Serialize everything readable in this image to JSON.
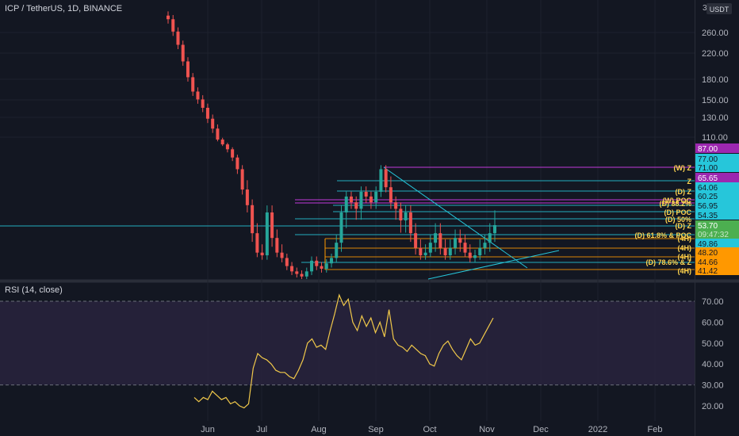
{
  "header": {
    "symbol": "ICP / TetherUS, 1D, BINANCE"
  },
  "price_axis": {
    "currency": "USDT",
    "top_value": "3",
    "ticks": [
      "260.00",
      "220.00",
      "180.00",
      "150.00",
      "130.00",
      "110.00"
    ]
  },
  "price_badges": [
    {
      "text": "87.00",
      "bg": "#9c27b0",
      "fg": "#ffffff"
    },
    {
      "text": "77.00",
      "bg": "#26c6da",
      "fg": "#131722"
    },
    {
      "text": "71.00",
      "bg": "#26c6da",
      "fg": "#131722"
    },
    {
      "text": "65.65",
      "bg": "#9c27b0",
      "fg": "#ffffff"
    },
    {
      "text": "64.06",
      "bg": "#26c6da",
      "fg": "#131722"
    },
    {
      "text": "60.25",
      "bg": "#26c6da",
      "fg": "#131722"
    },
    {
      "text": "56.95",
      "bg": "#26c6da",
      "fg": "#131722"
    },
    {
      "text": "54.35",
      "bg": "#26c6da",
      "fg": "#131722"
    },
    {
      "text": "53.70",
      "bg": "#4caf50",
      "fg": "#ffffff"
    },
    {
      "text": "09:47:32",
      "bg": "#4caf50",
      "fg": "#c8e6c9"
    },
    {
      "text": "49.86",
      "bg": "#26c6da",
      "fg": "#131722"
    },
    {
      "text": "48.20",
      "bg": "#ff9800",
      "fg": "#131722"
    },
    {
      "text": "44.66",
      "bg": "#ff9800",
      "fg": "#131722"
    },
    {
      "text": "41.42",
      "bg": "#ff9800",
      "fg": "#131722"
    }
  ],
  "level_labels": [
    "(W) Z",
    "Z",
    "(D) Z",
    "(W) POC",
    "(D) 38.2%",
    "(D) POC",
    "(D) 50%",
    "(D) Z",
    "(4H)",
    "(D) 61.8% & POC",
    "(4H)",
    "(4H)",
    "(D) 78.6% & Z",
    "(4H)"
  ],
  "rsi": {
    "title": "RSI (14, close)",
    "ticks": [
      "70.00",
      "60.00",
      "50.00",
      "40.00",
      "30.00",
      "20.00"
    ],
    "color": "#f0c84a"
  },
  "time_axis": [
    "Jun",
    "Jul",
    "Aug",
    "Sep",
    "Oct",
    "Nov",
    "Dec",
    "2022",
    "Feb"
  ],
  "colors": {
    "up": "#26a69a",
    "down": "#ef5350",
    "band": "#2a2440"
  },
  "chart_data": [
    {
      "type": "candlestick",
      "title": "ICP / TetherUS, 1D, BINANCE",
      "x": [
        "Jun",
        "Jul",
        "Aug",
        "Sep",
        "Oct",
        "Nov",
        "Dec",
        "2022",
        "Feb"
      ],
      "ylabel": "USDT",
      "ylim": [
        38,
        300
      ],
      "yscale": "log",
      "series": [
        {
          "close_path": [
            290,
            262,
            235,
            205,
            180,
            160,
            150,
            140,
            128,
            118,
            105,
            95,
            86,
            78,
            70,
            63,
            57,
            52,
            48,
            47,
            55,
            51,
            48,
            46,
            43,
            41,
            40,
            39,
            41,
            45,
            43,
            42,
            44,
            46,
            50,
            55,
            60,
            58,
            56,
            62,
            60,
            58,
            62,
            70,
            64,
            58,
            56,
            54,
            55,
            52,
            49,
            47,
            48,
            50,
            52,
            49,
            47,
            49,
            51,
            50,
            48,
            46,
            47,
            49,
            50,
            52,
            53.7
          ]
        }
      ]
    },
    {
      "type": "line",
      "title": "RSI (14, close)",
      "ylim": [
        15,
        75
      ],
      "bands": [
        30,
        70
      ],
      "series": [
        {
          "values": [
            24,
            22,
            24,
            23,
            27,
            25,
            23,
            24,
            21,
            22,
            20,
            19,
            21,
            38,
            45,
            43,
            42,
            40,
            37,
            36,
            36,
            34,
            33,
            37,
            42,
            50,
            52,
            48,
            49,
            47,
            56,
            64,
            73,
            68,
            71,
            60,
            56,
            63,
            58,
            62,
            55,
            60,
            53,
            66,
            52,
            49,
            48,
            46,
            49,
            47,
            45,
            44,
            40,
            39,
            45,
            49,
            51,
            47,
            44,
            42,
            47,
            52,
            49,
            50,
            54,
            58,
            62
          ]
        }
      ]
    }
  ]
}
